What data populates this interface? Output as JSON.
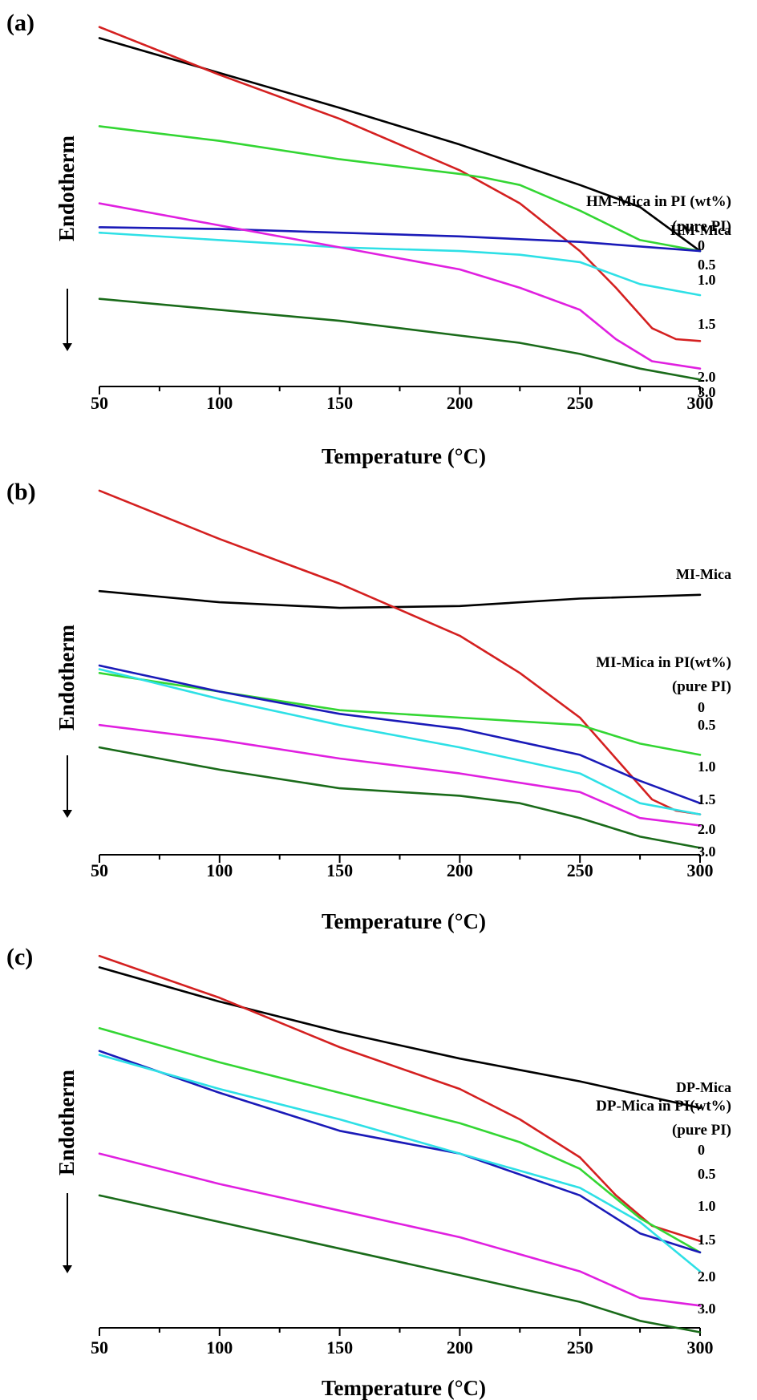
{
  "chart_data": [
    {
      "type": "line",
      "panel_label": "(a)",
      "xlabel": "Temperature (°C)",
      "ylabel": "Endotherm",
      "xlim": [
        50,
        300
      ],
      "xticks": [
        50,
        100,
        150,
        200,
        250,
        300
      ],
      "y_units": "arbitrary (offset curves, scale 0-100)",
      "legend_title": "HM-Mica in PI (wt%)",
      "legend_subtitle": "(pure PI)",
      "series": [
        {
          "name": "HM-Mica",
          "color": "#000000",
          "x": [
            50,
            100,
            150,
            200,
            250,
            275,
            300
          ],
          "y": [
            94,
            84.5,
            75,
            65,
            54,
            48,
            36
          ]
        },
        {
          "name": "0",
          "color": "#d42020",
          "x": [
            50,
            100,
            150,
            200,
            225,
            250,
            265,
            280,
            290,
            300
          ],
          "y": [
            97,
            84,
            72,
            58,
            49,
            36,
            26,
            15,
            12,
            11.5
          ]
        },
        {
          "name": "0.5",
          "color": "#33d633",
          "x": [
            50,
            100,
            150,
            200,
            210,
            225,
            250,
            275,
            300
          ],
          "y": [
            70,
            66,
            61,
            57,
            56,
            54,
            47,
            39,
            36
          ]
        },
        {
          "name": "1.0",
          "color": "#1a1ab8",
          "x": [
            50,
            100,
            150,
            200,
            250,
            300
          ],
          "y": [
            42.5,
            42,
            41,
            40,
            38.5,
            36
          ]
        },
        {
          "name": "1.5",
          "color": "#2ee0e6",
          "x": [
            50,
            100,
            150,
            200,
            225,
            250,
            275,
            300
          ],
          "y": [
            41,
            39,
            37,
            36,
            35,
            33,
            27,
            24
          ]
        },
        {
          "name": "2.0",
          "color": "#e020e0",
          "x": [
            50,
            100,
            150,
            200,
            225,
            250,
            265,
            280,
            300
          ],
          "y": [
            49,
            43,
            37,
            31,
            26,
            20,
            12,
            6,
            4
          ]
        },
        {
          "name": "3.0",
          "color": "#1a6b1a",
          "x": [
            50,
            100,
            150,
            200,
            225,
            250,
            275,
            300
          ],
          "y": [
            23,
            20,
            17,
            13,
            11,
            8,
            4,
            1
          ]
        }
      ]
    },
    {
      "type": "line",
      "panel_label": "(b)",
      "xlabel": "Temperature (°C)",
      "ylabel": "Endotherm",
      "xlim": [
        50,
        300
      ],
      "xticks": [
        50,
        100,
        150,
        200,
        250,
        300
      ],
      "y_units": "arbitrary (offset curves, scale 0-100)",
      "legend_title": "MI-Mica in PI(wt%)",
      "legend_subtitle": "(pure PI)",
      "series": [
        {
          "name": "MI-Mica",
          "color": "#000000",
          "x": [
            50,
            100,
            150,
            200,
            250,
            300
          ],
          "y": [
            70,
            67,
            65.5,
            66,
            68,
            69
          ]
        },
        {
          "name": "0",
          "color": "#d42020",
          "x": [
            50,
            100,
            150,
            200,
            225,
            250,
            265,
            280,
            290,
            300
          ],
          "y": [
            97,
            84,
            72,
            58,
            48,
            36,
            25,
            14,
            11,
            10
          ]
        },
        {
          "name": "0.5",
          "color": "#33d633",
          "x": [
            50,
            100,
            150,
            200,
            250,
            275,
            300
          ],
          "y": [
            48,
            43,
            38,
            36,
            34,
            29,
            26
          ]
        },
        {
          "name": "1.0",
          "color": "#1a1ab8",
          "x": [
            50,
            100,
            150,
            200,
            250,
            275,
            300
          ],
          "y": [
            50,
            43,
            37,
            33,
            26,
            19,
            13
          ]
        },
        {
          "name": "1.5",
          "color": "#2ee0e6",
          "x": [
            50,
            100,
            150,
            200,
            250,
            275,
            300
          ],
          "y": [
            49,
            41,
            34,
            28,
            21,
            13,
            10
          ]
        },
        {
          "name": "2.0",
          "color": "#e020e0",
          "x": [
            50,
            100,
            150,
            200,
            250,
            275,
            300
          ],
          "y": [
            34,
            30,
            25,
            21,
            16,
            9,
            7
          ]
        },
        {
          "name": "3.0",
          "color": "#1a6b1a",
          "x": [
            50,
            100,
            150,
            200,
            225,
            250,
            275,
            300
          ],
          "y": [
            28,
            22,
            17,
            15,
            13,
            9,
            4,
            1
          ]
        }
      ]
    },
    {
      "type": "line",
      "panel_label": "(c)",
      "xlabel": "Temperature (°C)",
      "ylabel": "Endotherm",
      "xlim": [
        50,
        300
      ],
      "xticks": [
        50,
        100,
        150,
        200,
        250,
        300
      ],
      "y_units": "arbitrary (offset curves, scale 0-100)",
      "legend_title": "DP-Mica in PI(wt%)",
      "legend_subtitle": "(pure PI)",
      "series": [
        {
          "name": "DP-Mica",
          "color": "#000000",
          "x": [
            50,
            100,
            150,
            200,
            250,
            300
          ],
          "y": [
            94,
            85,
            77,
            70,
            64,
            57
          ]
        },
        {
          "name": "0",
          "color": "#d42020",
          "x": [
            50,
            100,
            150,
            200,
            225,
            250,
            265,
            280,
            290,
            300
          ],
          "y": [
            97,
            86,
            73,
            62,
            54,
            44,
            34,
            26,
            24,
            22
          ]
        },
        {
          "name": "0.5",
          "color": "#33d633",
          "x": [
            50,
            100,
            150,
            200,
            225,
            250,
            275,
            300
          ],
          "y": [
            78,
            69,
            61,
            53,
            48,
            41,
            28,
            19
          ]
        },
        {
          "name": "1.0",
          "color": "#1a1ab8",
          "x": [
            50,
            100,
            150,
            200,
            250,
            275,
            300
          ],
          "y": [
            72,
            61,
            51,
            45,
            34,
            24,
            19
          ]
        },
        {
          "name": "1.5",
          "color": "#2ee0e6",
          "x": [
            50,
            100,
            150,
            200,
            250,
            275,
            300
          ],
          "y": [
            71,
            62,
            54,
            45,
            36,
            27,
            14
          ]
        },
        {
          "name": "2.0",
          "color": "#e020e0",
          "x": [
            50,
            100,
            150,
            200,
            250,
            275,
            300
          ],
          "y": [
            45,
            37,
            30,
            23,
            14,
            7,
            5
          ]
        },
        {
          "name": "3.0",
          "color": "#1a6b1a",
          "x": [
            50,
            100,
            150,
            200,
            250,
            275,
            300
          ],
          "y": [
            34,
            27,
            20,
            13,
            6,
            1,
            -2
          ]
        }
      ]
    }
  ]
}
